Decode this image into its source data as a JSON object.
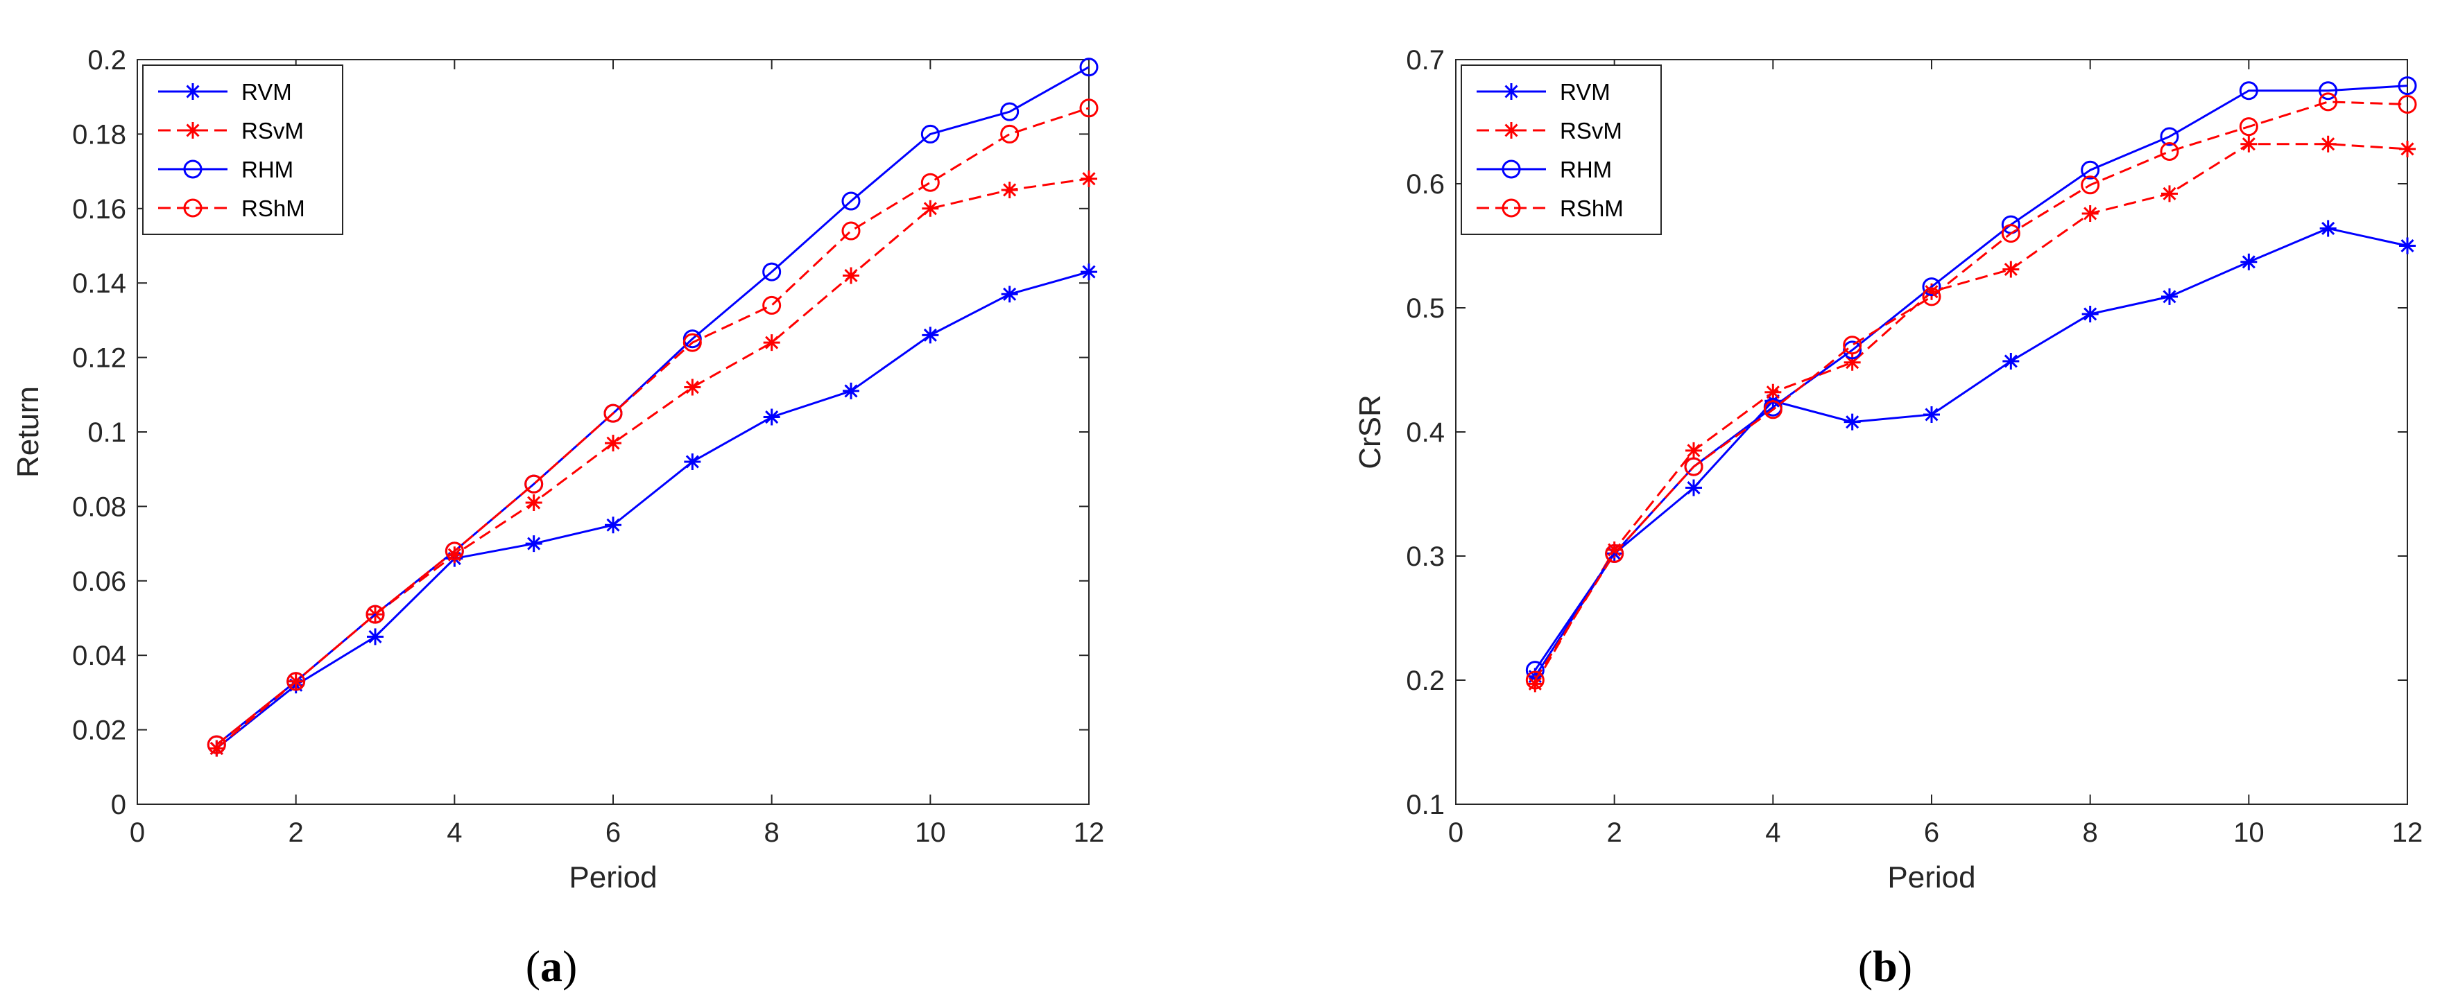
{
  "chart_data": [
    {
      "type": "line",
      "caption_open": "(",
      "caption_letter": "a",
      "caption_close": ")",
      "xlabel": "Period",
      "ylabel": "Return",
      "xlim": [
        0,
        12
      ],
      "ylim": [
        0,
        0.2
      ],
      "xticks": [
        0,
        2,
        4,
        6,
        8,
        10,
        12
      ],
      "xtick_labels": [
        "0",
        "2",
        "4",
        "6",
        "8",
        "10",
        "12"
      ],
      "yticks": [
        0,
        0.02,
        0.04,
        0.06,
        0.08,
        0.1,
        0.12,
        0.14,
        0.16,
        0.18,
        0.2
      ],
      "ytick_labels": [
        "0",
        "0.02",
        "0.04",
        "0.06",
        "0.08",
        "0.1",
        "0.12",
        "0.14",
        "0.16",
        "0.18",
        "0.2"
      ],
      "legend_position": "top-left",
      "x": [
        1,
        2,
        3,
        4,
        5,
        6,
        7,
        8,
        9,
        10,
        11,
        12
      ],
      "series": [
        {
          "name": "RVM",
          "color": "#0000ff",
          "dash": "solid",
          "marker": "asterisk",
          "values": [
            0.015,
            0.032,
            0.045,
            0.066,
            0.07,
            0.075,
            0.092,
            0.104,
            0.111,
            0.126,
            0.137,
            0.143
          ]
        },
        {
          "name": "RSvM",
          "color": "#ff0000",
          "dash": "dashed",
          "marker": "asterisk",
          "values": [
            0.015,
            0.033,
            0.051,
            0.067,
            0.081,
            0.097,
            0.112,
            0.124,
            0.142,
            0.16,
            0.165,
            0.168
          ]
        },
        {
          "name": "RHM",
          "color": "#0000ff",
          "dash": "solid",
          "marker": "circle",
          "values": [
            0.016,
            0.033,
            0.051,
            0.068,
            0.086,
            0.105,
            0.125,
            0.143,
            0.162,
            0.18,
            0.186,
            0.198
          ]
        },
        {
          "name": "RShM",
          "color": "#ff0000",
          "dash": "dashed",
          "marker": "circle",
          "values": [
            0.016,
            0.033,
            0.051,
            0.068,
            0.086,
            0.105,
            0.124,
            0.134,
            0.154,
            0.167,
            0.18,
            0.187
          ]
        }
      ]
    },
    {
      "type": "line",
      "caption_open": "(",
      "caption_letter": "b",
      "caption_close": ")",
      "xlabel": "Period",
      "ylabel": "CrSR",
      "xlim": [
        0,
        12
      ],
      "ylim": [
        0.1,
        0.7
      ],
      "xticks": [
        0,
        2,
        4,
        6,
        8,
        10,
        12
      ],
      "xtick_labels": [
        "0",
        "2",
        "4",
        "6",
        "8",
        "10",
        "12"
      ],
      "yticks": [
        0.1,
        0.2,
        0.3,
        0.4,
        0.5,
        0.6,
        0.7
      ],
      "ytick_labels": [
        "0.1",
        "0.2",
        "0.3",
        "0.4",
        "0.5",
        "0.6",
        "0.7"
      ],
      "legend_position": "top-left",
      "x": [
        1,
        2,
        3,
        4,
        5,
        6,
        7,
        8,
        9,
        10,
        11,
        12
      ],
      "series": [
        {
          "name": "RVM",
          "color": "#0000ff",
          "dash": "solid",
          "marker": "asterisk",
          "values": [
            0.203,
            0.302,
            0.355,
            0.425,
            0.408,
            0.414,
            0.457,
            0.495,
            0.509,
            0.537,
            0.564,
            0.55
          ]
        },
        {
          "name": "RSvM",
          "color": "#ff0000",
          "dash": "dashed",
          "marker": "asterisk",
          "values": [
            0.197,
            0.305,
            0.385,
            0.432,
            0.456,
            0.513,
            0.531,
            0.576,
            0.592,
            0.632,
            0.632,
            0.628
          ]
        },
        {
          "name": "RHM",
          "color": "#0000ff",
          "dash": "solid",
          "marker": "circle",
          "values": [
            0.208,
            0.302,
            0.372,
            0.42,
            0.466,
            0.517,
            0.567,
            0.611,
            0.638,
            0.675,
            0.675,
            0.679
          ]
        },
        {
          "name": "RShM",
          "color": "#ff0000",
          "dash": "dashed",
          "marker": "circle",
          "values": [
            0.2,
            0.302,
            0.372,
            0.418,
            0.47,
            0.509,
            0.56,
            0.599,
            0.626,
            0.646,
            0.666,
            0.664
          ]
        }
      ]
    }
  ]
}
